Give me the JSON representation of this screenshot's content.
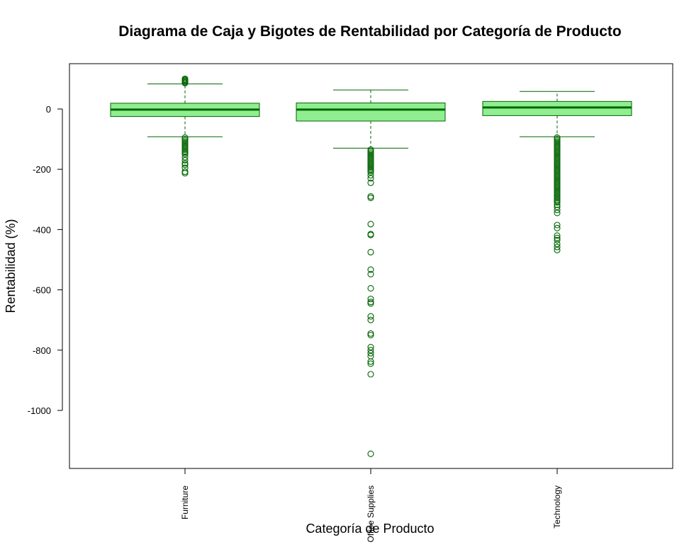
{
  "chart_data": {
    "type": "boxplot",
    "title": "Diagrama de Caja y Bigotes de Rentabilidad por Categoría de Producto",
    "xlabel": "Categoría de Producto",
    "ylabel": "Rentabilidad (%)",
    "ylim": [
      -1160,
      150
    ],
    "yticks": [
      0,
      -200,
      -400,
      -600,
      -800,
      -1000
    ],
    "grid": false,
    "categories": [
      "Furniture",
      "Office Supplies",
      "Technology"
    ],
    "boxes": [
      {
        "category": "Furniture",
        "whisker_low": -92,
        "q1": -25,
        "median": -2,
        "q3": 19,
        "whisker_high": 83,
        "outliers": [
          100,
          97,
          94,
          91,
          88,
          86,
          -95,
          -100,
          -105,
          -110,
          -115,
          -120,
          -125,
          -130,
          -135,
          -140,
          -145,
          -150,
          -160,
          -170,
          -180,
          -185,
          -195,
          -208,
          -213
        ]
      },
      {
        "category": "Office Supplies",
        "whisker_low": -130,
        "q1": -40,
        "median": -2,
        "q3": 20,
        "whisker_high": 63,
        "outliers": [
          -135,
          -140,
          -145,
          -150,
          -155,
          -160,
          -165,
          -170,
          -175,
          -180,
          -185,
          -190,
          -195,
          -200,
          -205,
          -210,
          -220,
          -230,
          -245,
          -290,
          -295,
          -382,
          -415,
          -418,
          -475,
          -533,
          -548,
          -595,
          -630,
          -640,
          -645,
          -688,
          -700,
          -745,
          -750,
          -790,
          -800,
          -810,
          -820,
          -838,
          -845,
          -880,
          -1144
        ]
      },
      {
        "category": "Technology",
        "whisker_low": -92,
        "q1": -22,
        "median": 5,
        "q3": 25,
        "whisker_high": 58,
        "outliers": [
          -95,
          -100,
          -105,
          -110,
          -115,
          -120,
          -125,
          -130,
          -135,
          -140,
          -145,
          -150,
          -155,
          -160,
          -165,
          -170,
          -175,
          -180,
          -185,
          -190,
          -195,
          -200,
          -205,
          -210,
          -215,
          -220,
          -225,
          -230,
          -235,
          -240,
          -245,
          -250,
          -255,
          -260,
          -265,
          -270,
          -275,
          -280,
          -285,
          -290,
          -295,
          -300,
          -305,
          -310,
          -318,
          -325,
          -335,
          -345,
          -385,
          -395,
          -420,
          -428,
          -435,
          -448,
          -458,
          -468
        ]
      }
    ],
    "colors": {
      "box_fill": "#90EE90",
      "stroke": "#006400"
    }
  }
}
